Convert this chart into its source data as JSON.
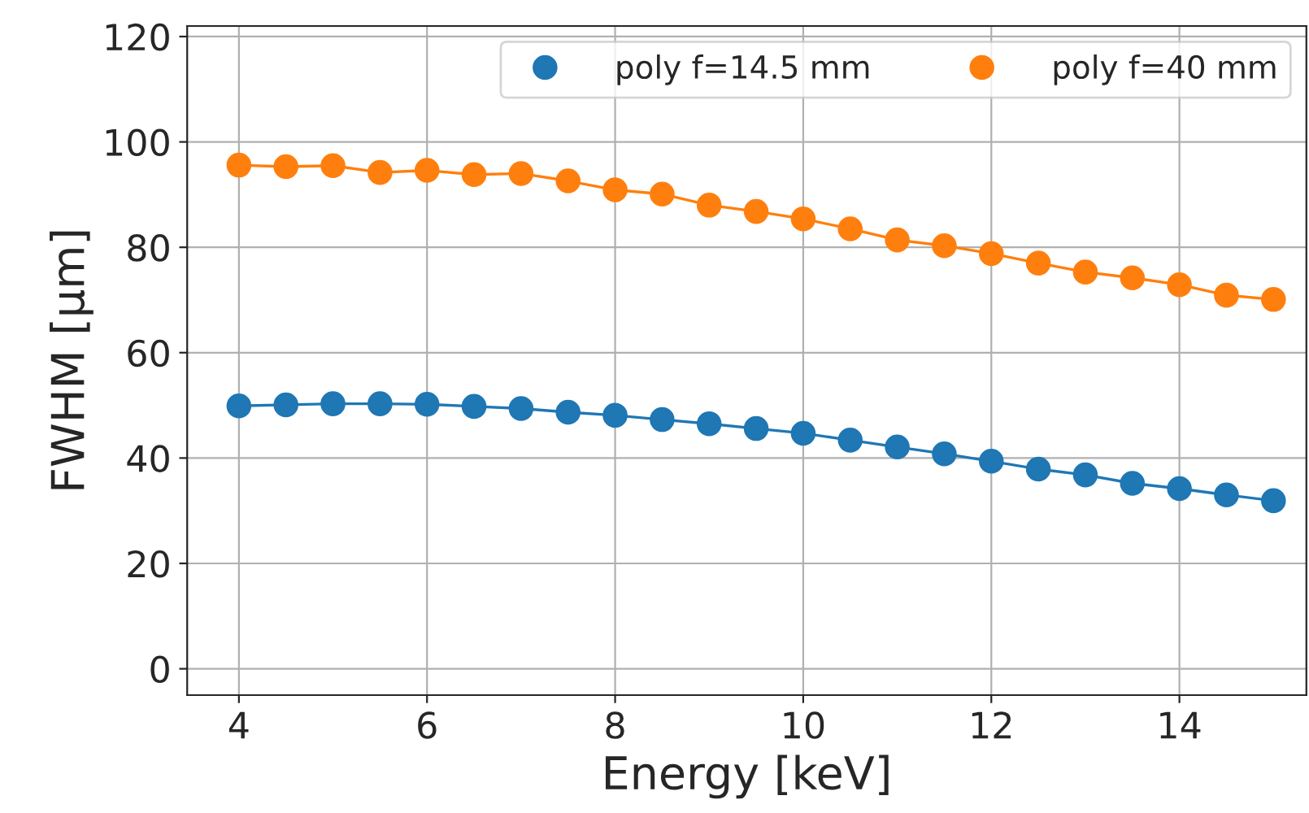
{
  "chart_data": {
    "type": "line",
    "xlabel": "Energy [keV]",
    "ylabel": "FWHM [µm]",
    "x": [
      4,
      4.5,
      5,
      5.5,
      6,
      6.5,
      7,
      7.5,
      8,
      8.5,
      9,
      9.5,
      10,
      10.5,
      11,
      11.5,
      12,
      12.5,
      13,
      13.5,
      14,
      14.5,
      15
    ],
    "series": [
      {
        "name": "poly f=14.5 mm",
        "color": "#1f77b4",
        "values": [
          49.9,
          50.1,
          50.3,
          50.3,
          50.2,
          49.8,
          49.4,
          48.7,
          48.1,
          47.3,
          46.5,
          45.6,
          44.7,
          43.4,
          42.1,
          40.8,
          39.4,
          37.9,
          36.8,
          35.2,
          34.2,
          33.0,
          31.9
        ]
      },
      {
        "name": "poly f=40 mm",
        "color": "#ff7f0e",
        "values": [
          95.6,
          95.3,
          95.5,
          94.2,
          94.6,
          93.8,
          94.0,
          92.6,
          90.9,
          90.1,
          88.0,
          86.8,
          85.4,
          83.5,
          81.4,
          80.3,
          78.8,
          77.0,
          75.3,
          74.2,
          72.9,
          70.9,
          70.1
        ]
      }
    ],
    "xlim": [
      3.45,
      15.35
    ],
    "ylim": [
      -5,
      122
    ],
    "xticks": [
      4,
      6,
      8,
      10,
      12,
      14
    ],
    "yticks": [
      0,
      20,
      40,
      60,
      80,
      100,
      120
    ],
    "grid": true,
    "legend": "top right",
    "marker": "circle",
    "line_style": "solid"
  }
}
